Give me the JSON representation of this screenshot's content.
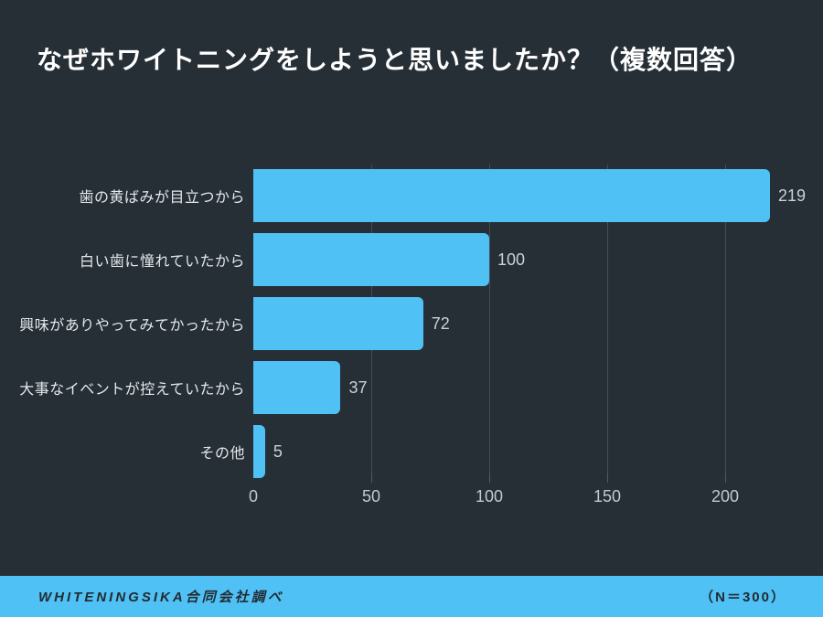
{
  "header": {
    "title": "なぜホワイトニングをしようと思いましたか？（複数回答）"
  },
  "chart_data": {
    "type": "bar",
    "orientation": "horizontal",
    "categories": [
      "歯の黄ばみが目立つから",
      "白い歯に憧れていたから",
      "興味がありやってみてかったから",
      "大事なイベントが控えていたから",
      "その他"
    ],
    "values": [
      219,
      100,
      72,
      37,
      5
    ],
    "value_labels": [
      "219",
      "100",
      "72",
      "37",
      "5"
    ],
    "x_ticks": [
      0,
      50,
      100,
      150,
      200
    ],
    "x_tick_labels": [
      "0",
      "50",
      "100",
      "150",
      "200"
    ],
    "xlim": [
      0,
      219
    ],
    "grid": true,
    "legend": "none",
    "title": "なぜホワイトニングをしようと思いましたか？（複数回答）",
    "xlabel": "",
    "ylabel": ""
  },
  "footer": {
    "source": "WHITENINGSIKA合同会社調べ",
    "sample": "（N＝300）"
  },
  "colors": {
    "background": "#262e36",
    "bar": "#4fc1f5",
    "accent_band": "#4fc1f5",
    "title_text": "#ffffff",
    "category_label": "#e4e8ea",
    "value_label": "#ccd1d5",
    "axis_label": "#c3c9ce",
    "gridline": "#454e57",
    "footer_text": "#232b32"
  }
}
